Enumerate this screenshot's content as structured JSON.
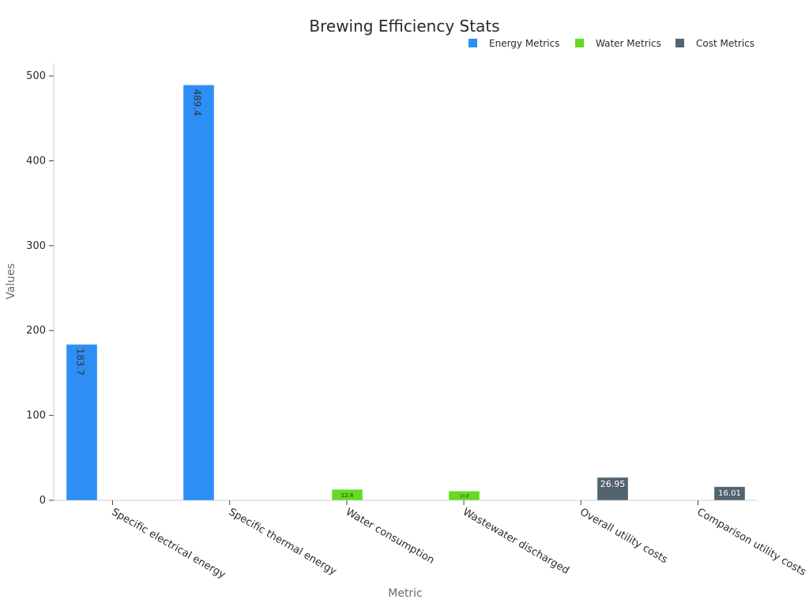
{
  "chart_data": {
    "type": "bar",
    "title": "Brewing Efficiency Stats",
    "xlabel": "Metric",
    "ylabel": "Values",
    "ylim": [
      0,
      515
    ],
    "yticks": [
      0,
      100,
      200,
      300,
      400,
      500
    ],
    "grid": false,
    "legend_position": "top-right",
    "categories": [
      "Specific electrical energy",
      "Specific thermal energy",
      "Water consumption",
      "Wastewater discharged",
      "Overall utility costs",
      "Comparison utility costs"
    ],
    "series": [
      {
        "name": "Energy Metrics",
        "color": "#2d8ff5",
        "values": [
          183.7,
          489.4,
          null,
          null,
          null,
          null
        ],
        "labels": [
          "183.7",
          "489.4",
          "",
          "",
          "",
          ""
        ]
      },
      {
        "name": "Water Metrics",
        "color": "#66d927",
        "values": [
          null,
          null,
          12.8,
          10.8,
          null,
          null
        ],
        "labels": [
          "",
          "",
          "12.8",
          "10.8",
          "",
          ""
        ]
      },
      {
        "name": "Cost Metrics",
        "color": "#52646e",
        "values": [
          null,
          null,
          null,
          null,
          26.95,
          16.01
        ],
        "labels": [
          "",
          "",
          "",
          "",
          "26.95",
          "16.01"
        ]
      }
    ]
  }
}
